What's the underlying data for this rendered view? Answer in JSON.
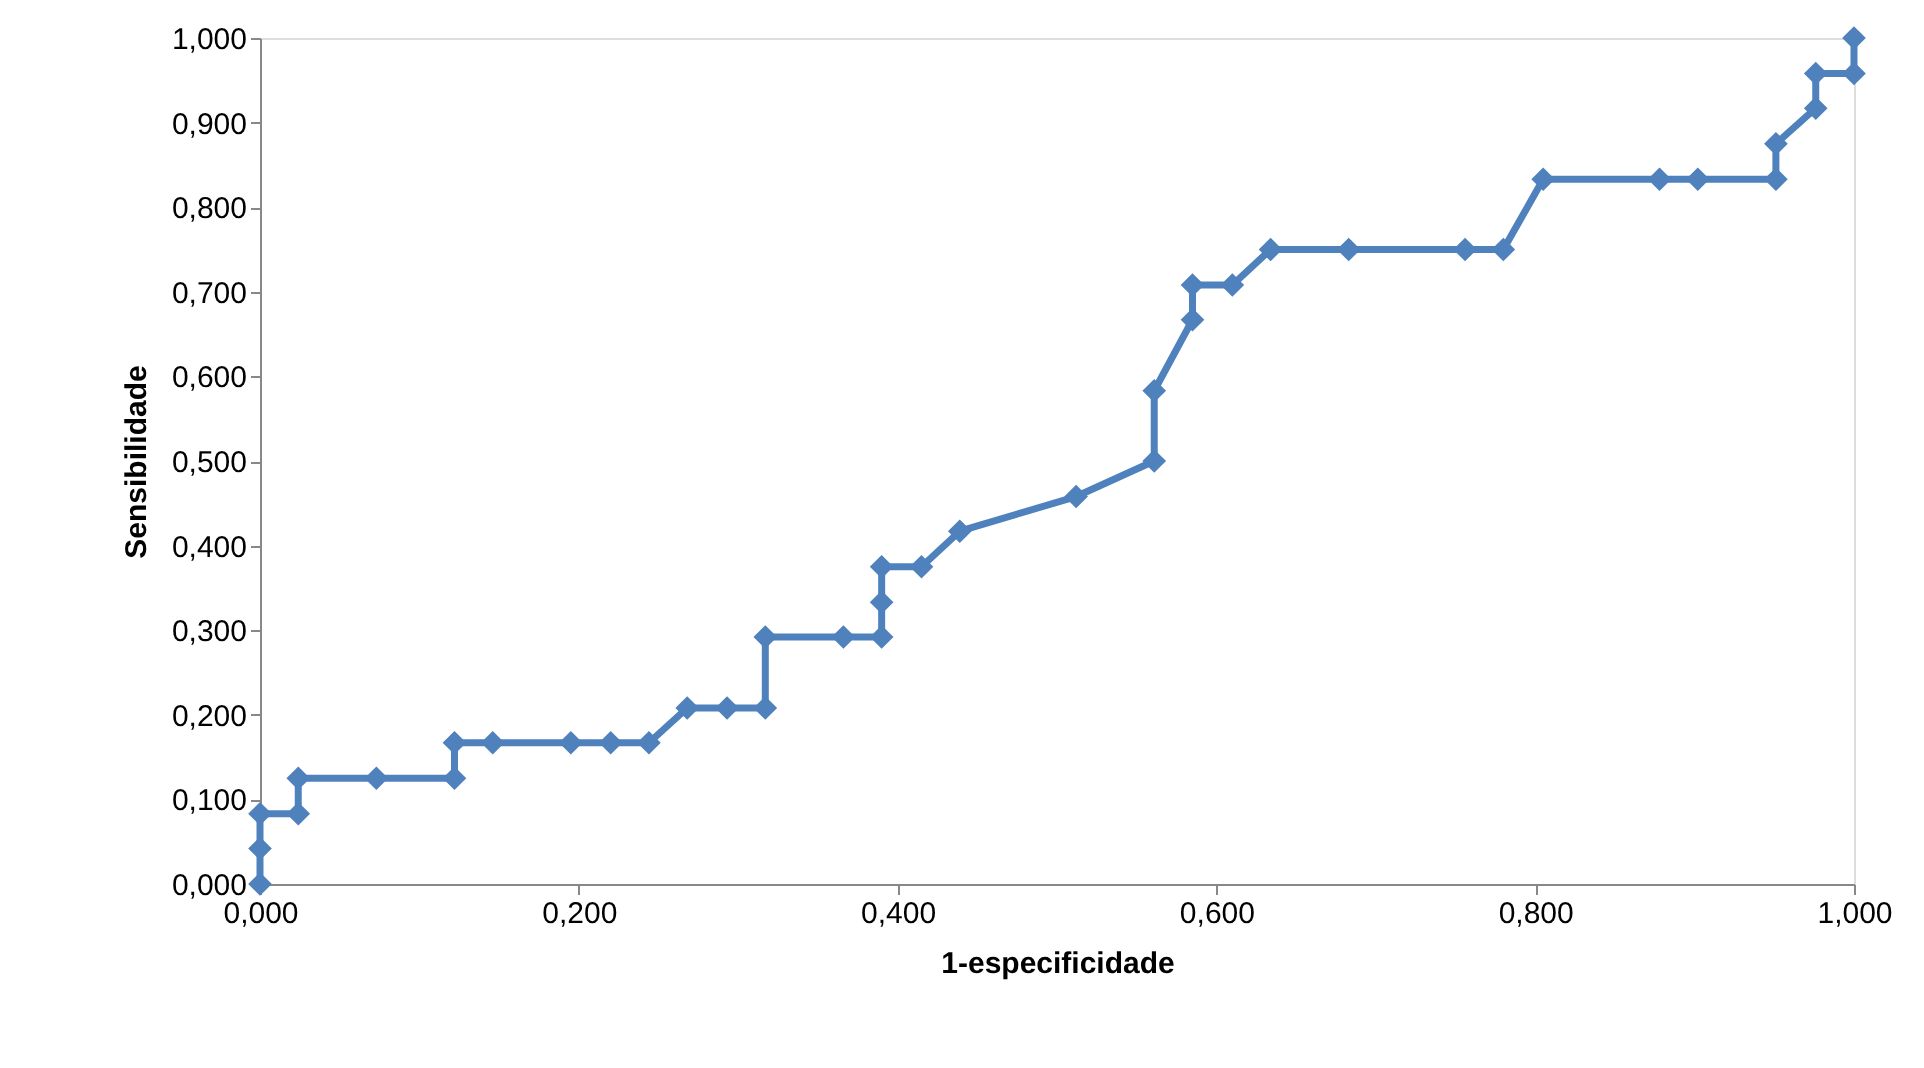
{
  "chart_data": {
    "type": "line",
    "xlabel": "1-especificidade",
    "ylabel": "Sensibilidade",
    "x": [
      0,
      0,
      0,
      0.024,
      0.024,
      0.073,
      0.122,
      0.122,
      0.146,
      0.195,
      0.22,
      0.244,
      0.268,
      0.293,
      0.317,
      0.317,
      0.366,
      0.39,
      0.39,
      0.39,
      0.415,
      0.439,
      0.512,
      0.561,
      0.561,
      0.585,
      0.585,
      0.61,
      0.634,
      0.683,
      0.756,
      0.78,
      0.805,
      0.878,
      0.902,
      0.951,
      0.951,
      0.976,
      0.976,
      1,
      1
    ],
    "series": [
      {
        "color": "#4f81bd",
        "values": [
          0,
          0.042,
          0.083,
          0.083,
          0.125,
          0.125,
          0.125,
          0.167,
          0.167,
          0.167,
          0.167,
          0.167,
          0.208,
          0.208,
          0.208,
          0.292,
          0.292,
          0.292,
          0.333,
          0.375,
          0.375,
          0.417,
          0.458,
          0.5,
          0.583,
          0.667,
          0.708,
          0.708,
          0.75,
          0.75,
          0.75,
          0.75,
          0.833,
          0.833,
          0.833,
          0.833,
          0.875,
          0.917,
          0.958,
          0.958,
          1
        ]
      }
    ],
    "xlim": [
      0,
      1
    ],
    "ylim": [
      0,
      1
    ],
    "xticks": [
      {
        "value": 0,
        "label": "0,000"
      },
      {
        "value": 0.2,
        "label": "0,200"
      },
      {
        "value": 0.4,
        "label": "0,400"
      },
      {
        "value": 0.6,
        "label": "0,600"
      },
      {
        "value": 0.8,
        "label": "0,800"
      },
      {
        "value": 1,
        "label": "1,000"
      }
    ],
    "yticks": [
      {
        "value": 0,
        "label": "0,000"
      },
      {
        "value": 0.1,
        "label": "0,100"
      },
      {
        "value": 0.2,
        "label": "0,200"
      },
      {
        "value": 0.3,
        "label": "0,300"
      },
      {
        "value": 0.4,
        "label": "0,400"
      },
      {
        "value": 0.5,
        "label": "0,500"
      },
      {
        "value": 0.6,
        "label": "0,600"
      },
      {
        "value": 0.7,
        "label": "0,700"
      },
      {
        "value": 0.8,
        "label": "0,800"
      },
      {
        "value": 0.9,
        "label": "0,900"
      },
      {
        "value": 1,
        "label": "1,000"
      }
    ],
    "grid": false,
    "marker": "diamond",
    "line_style": "solid"
  }
}
